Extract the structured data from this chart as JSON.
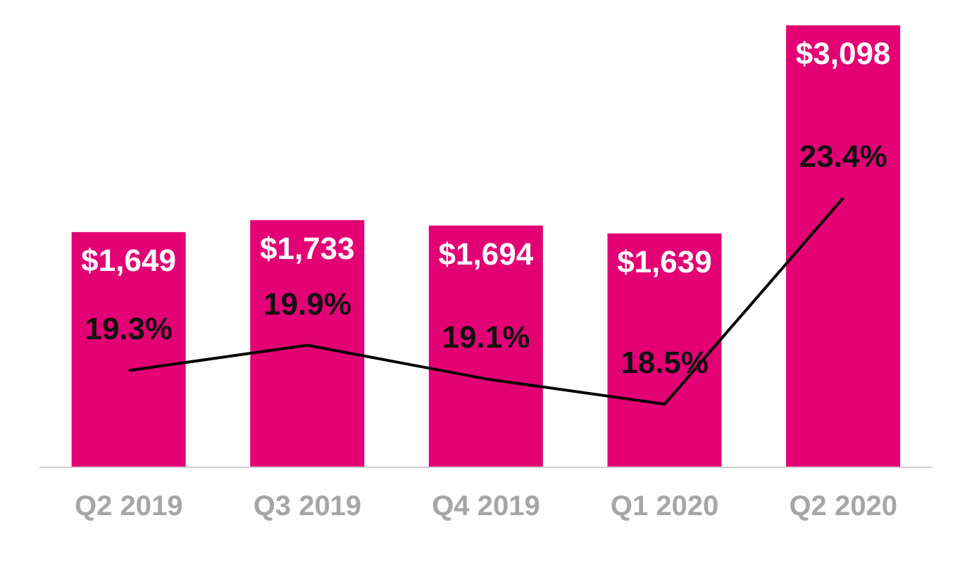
{
  "chart_data": {
    "type": "bar",
    "categories": [
      "Q2 2019",
      "Q3 2019",
      "Q4 2019",
      "Q1 2020",
      "Q2 2020"
    ],
    "series": [
      {
        "color": "#e20074",
        "values": [
          1649,
          1733,
          1694,
          1639,
          3098
        ],
        "value_labels": [
          "$1,649",
          "$1,733",
          "$1,694",
          "$1,639",
          "$3,098"
        ]
      },
      {
        "type": "line",
        "axis": "y2",
        "color": "#000000",
        "values": [
          19.3,
          19.9,
          19.1,
          18.5,
          23.4
        ],
        "value_labels": [
          "19.3%",
          "19.9%",
          "19.1%",
          "18.5%",
          "23.4%"
        ]
      }
    ],
    "y2lim": [
      17,
      27.5
    ],
    "tick_labels": "x",
    "grid": false,
    "legend": false,
    "marker": "none",
    "line_style": "solid"
  }
}
